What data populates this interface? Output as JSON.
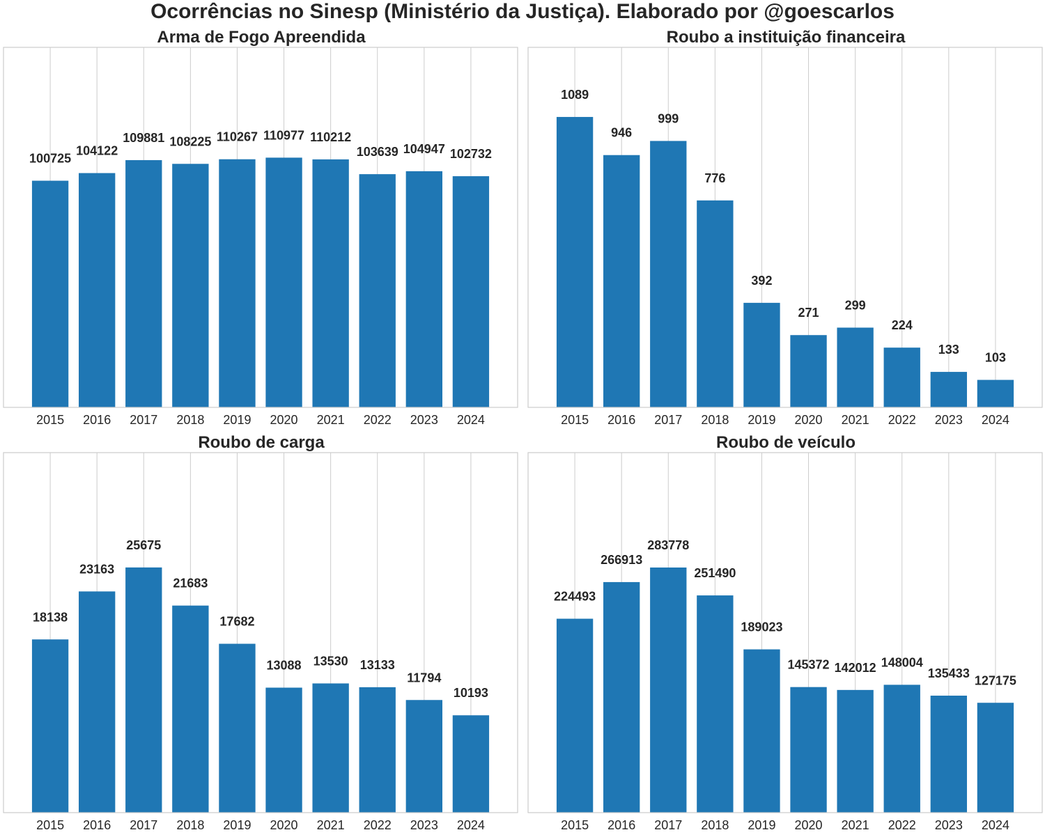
{
  "suptitle": "Ocorrências no Sinesp (Ministério da Justiça). Elaborado por @goescarlos",
  "colors": {
    "bar": "#1f77b4",
    "grid": "#cccccc",
    "axes_edge": "#cccccc",
    "text": "#262626"
  },
  "chart_data": [
    {
      "type": "bar",
      "title": "Arma de Fogo Apreendida",
      "categories": [
        "2015",
        "2016",
        "2017",
        "2018",
        "2019",
        "2020",
        "2021",
        "2022",
        "2023",
        "2024"
      ],
      "values": [
        100725,
        104122,
        109881,
        108225,
        110267,
        110977,
        110212,
        103639,
        104947,
        102732
      ],
      "ylim": [
        0,
        160000
      ],
      "grid": "vertical",
      "data_labels": true
    },
    {
      "type": "bar",
      "title": "Roubo a instituição financeira",
      "categories": [
        "2015",
        "2016",
        "2017",
        "2018",
        "2019",
        "2020",
        "2021",
        "2022",
        "2023",
        "2024"
      ],
      "values": [
        1089,
        946,
        999,
        776,
        392,
        271,
        299,
        224,
        133,
        103
      ],
      "ylim": [
        0,
        1350
      ],
      "grid": "vertical",
      "data_labels": true
    },
    {
      "type": "bar",
      "title": "Roubo de carga",
      "categories": [
        "2015",
        "2016",
        "2017",
        "2018",
        "2019",
        "2020",
        "2021",
        "2022",
        "2023",
        "2024"
      ],
      "values": [
        18138,
        23163,
        25675,
        21683,
        17682,
        13088,
        13530,
        13133,
        11794,
        10193
      ],
      "ylim": [
        0,
        37700
      ],
      "grid": "vertical",
      "data_labels": true
    },
    {
      "type": "bar",
      "title": "Roubo de veículo",
      "categories": [
        "2015",
        "2016",
        "2017",
        "2018",
        "2019",
        "2020",
        "2021",
        "2022",
        "2023",
        "2024"
      ],
      "values": [
        224493,
        266913,
        283778,
        251490,
        189023,
        145372,
        142012,
        148004,
        135433,
        127175
      ],
      "ylim": [
        0,
        416800
      ],
      "grid": "vertical",
      "data_labels": true
    }
  ]
}
